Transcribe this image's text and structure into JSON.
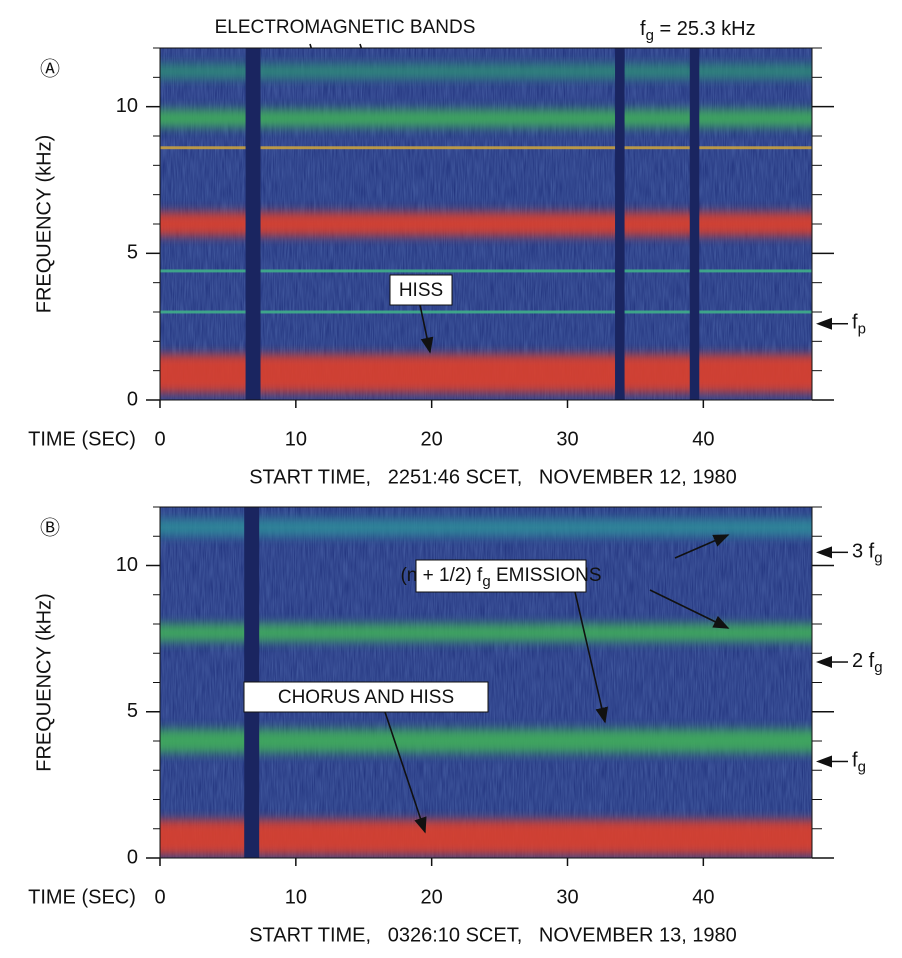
{
  "chart_data": [
    {
      "type": "spectrogram",
      "panel": "Ⓐ",
      "title": {
        "main": "f",
        "sub": "g",
        "rest": " = 25.3 kHz"
      },
      "ylabel": "FREQUENCY (kHz)",
      "xlabel": "TIME (SEC)",
      "footer": "START TIME,   2251:46 SCET,   NOVEMBER 12, 1980",
      "xlim": [
        0,
        48
      ],
      "ylim": [
        0,
        12
      ],
      "xticks": [
        0,
        10,
        20,
        30,
        40
      ],
      "yticks": [
        0,
        5,
        10
      ],
      "minor_yticks": [
        1,
        2,
        3,
        4,
        6,
        7,
        8,
        9,
        11,
        12
      ],
      "annotations": [
        "ELECTROMAGNETIC BANDS",
        "HISS"
      ],
      "bands": [
        {
          "freq": 0.9,
          "width": 1.3,
          "color": "#e0412a"
        },
        {
          "freq": 6.0,
          "width": 0.8,
          "color": "#e0412a"
        },
        {
          "freq": 9.6,
          "width": 0.6,
          "color": "#3fae5a"
        },
        {
          "freq": 11.2,
          "width": 0.5,
          "color": "#2f8a78"
        },
        {
          "freq": 8.6,
          "width": 0.1,
          "color": "#c8a040"
        },
        {
          "freq": 4.4,
          "width": 0.1,
          "color": "#3fae8a"
        },
        {
          "freq": 3.0,
          "width": 0.1,
          "color": "#3fae8a"
        }
      ],
      "gaps": [
        [
          6.3,
          7.4
        ],
        [
          33.5,
          34.2
        ],
        [
          39.0,
          39.7
        ]
      ],
      "markers": [
        {
          "value": 2.6,
          "main": "f",
          "sub": "p"
        }
      ]
    },
    {
      "type": "spectrogram",
      "panel": "Ⓑ",
      "ylabel": "FREQUENCY (kHz)",
      "xlabel": "TIME (SEC)",
      "footer": "START TIME,   0326:10 SCET,   NOVEMBER 13, 1980",
      "xlim": [
        0,
        48
      ],
      "ylim": [
        0,
        12
      ],
      "xticks": [
        0,
        10,
        20,
        30,
        40
      ],
      "yticks": [
        0,
        5,
        10
      ],
      "minor_yticks": [
        1,
        2,
        3,
        4,
        6,
        7,
        8,
        9,
        11,
        12
      ],
      "annotations": [
        {
          "main": "(n + 1/2) f",
          "sub": "g",
          "rest": " EMISSIONS"
        },
        "CHORUS AND HISS"
      ],
      "bands": [
        {
          "freq": 0.7,
          "width": 1.2,
          "color": "#e0412a"
        },
        {
          "freq": 4.0,
          "width": 0.8,
          "color": "#3fae5a"
        },
        {
          "freq": 7.7,
          "width": 0.6,
          "color": "#3fae5a"
        },
        {
          "freq": 11.3,
          "width": 0.6,
          "color": "#2f8a9a"
        }
      ],
      "gaps": [
        [
          6.2,
          7.3
        ]
      ],
      "markers": [
        {
          "value": 10.45,
          "main": "3 f",
          "sub": "g"
        },
        {
          "value": 6.7,
          "main": "2 f",
          "sub": "g"
        },
        {
          "value": 3.3,
          "main": "f",
          "sub": "g"
        }
      ]
    }
  ]
}
